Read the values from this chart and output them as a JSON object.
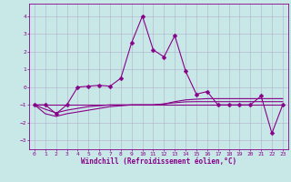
{
  "xlabel": "Windchill (Refroidissement éolien,°C)",
  "background_color": "#c8e8e8",
  "grid_color": "#b0b0cc",
  "line_color": "#880088",
  "xlim": [
    -0.5,
    23.5
  ],
  "ylim": [
    -3.5,
    4.7
  ],
  "yticks": [
    -3,
    -2,
    -1,
    0,
    1,
    2,
    3,
    4
  ],
  "xticks": [
    0,
    1,
    2,
    3,
    4,
    5,
    6,
    7,
    8,
    9,
    10,
    11,
    12,
    13,
    14,
    15,
    16,
    17,
    18,
    19,
    20,
    21,
    22,
    23
  ],
  "series1_x": [
    0,
    1,
    2,
    3,
    4,
    5,
    6,
    7,
    8,
    9,
    10,
    11,
    12,
    13,
    14,
    15,
    16,
    17,
    18,
    19,
    20,
    21,
    22,
    23
  ],
  "series1_y": [
    -1.0,
    -1.0,
    -1.5,
    -1.0,
    0.0,
    0.05,
    0.1,
    0.05,
    0.5,
    2.5,
    4.0,
    2.1,
    1.7,
    2.9,
    0.9,
    -0.4,
    -0.25,
    -1.0,
    -1.0,
    -1.0,
    -1.0,
    -0.5,
    -2.6,
    -1.0
  ],
  "series2_x": [
    0,
    1,
    2,
    3,
    4,
    5,
    6,
    7,
    8,
    9,
    10,
    11,
    12,
    13,
    14,
    15,
    16,
    17,
    18,
    19,
    20,
    21,
    22,
    23
  ],
  "series2_y": [
    -1.0,
    -1.0,
    -1.0,
    -1.0,
    -1.0,
    -1.0,
    -1.0,
    -1.0,
    -1.0,
    -1.0,
    -1.0,
    -1.0,
    -1.0,
    -1.0,
    -1.0,
    -1.0,
    -1.0,
    -1.0,
    -1.0,
    -1.0,
    -1.0,
    -1.0,
    -1.0,
    -1.0
  ],
  "series3_x": [
    0,
    1,
    2,
    3,
    4,
    5,
    6,
    7,
    8,
    9,
    10,
    11,
    12,
    13,
    14,
    15,
    16,
    17,
    18,
    19,
    20,
    21,
    22,
    23
  ],
  "series3_y": [
    -1.0,
    -1.25,
    -1.45,
    -1.3,
    -1.2,
    -1.1,
    -1.05,
    -1.0,
    -1.0,
    -1.0,
    -1.0,
    -1.0,
    -0.95,
    -0.88,
    -0.83,
    -0.82,
    -0.82,
    -0.82,
    -0.82,
    -0.82,
    -0.82,
    -0.82,
    -0.82,
    -0.82
  ],
  "series4_x": [
    0,
    1,
    2,
    3,
    4,
    5,
    6,
    7,
    8,
    9,
    10,
    11,
    12,
    13,
    14,
    15,
    16,
    17,
    18,
    19,
    20,
    21,
    22,
    23
  ],
  "series4_y": [
    -1.0,
    -1.5,
    -1.65,
    -1.5,
    -1.4,
    -1.3,
    -1.2,
    -1.1,
    -1.05,
    -1.0,
    -1.0,
    -1.0,
    -0.95,
    -0.82,
    -0.72,
    -0.68,
    -0.65,
    -0.65,
    -0.65,
    -0.65,
    -0.65,
    -0.65,
    -0.65,
    -0.65
  ],
  "markersize": 2.5,
  "linewidth": 0.8,
  "label_fontsize": 5.5,
  "tick_fontsize": 4.5
}
